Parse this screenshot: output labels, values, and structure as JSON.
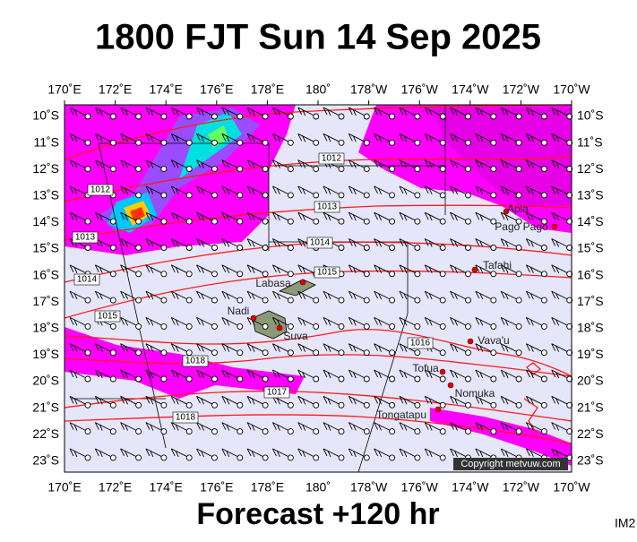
{
  "header": {
    "title": "1800 FJT Sun 14 Sep 2025"
  },
  "footer": {
    "subtitle": "Forecast +120 hr",
    "code": "IM2"
  },
  "map": {
    "lon_labels": [
      "170˚E",
      "172˚E",
      "174˚E",
      "176˚E",
      "178˚E",
      "180˚",
      "178˚W",
      "176˚W",
      "174˚W",
      "172˚W",
      "170˚W"
    ],
    "lat_labels": [
      "10˚S",
      "11˚S",
      "12˚S",
      "13˚S",
      "14˚S",
      "15˚S",
      "16˚S",
      "17˚S",
      "18˚S",
      "19˚S",
      "20˚S",
      "21˚S",
      "22˚S",
      "23˚S"
    ],
    "isobar_labels": [
      "1012",
      "1012",
      "1013",
      "1013",
      "1014",
      "1014",
      "1015",
      "1015",
      "1016",
      "1018",
      "1017",
      "1018"
    ],
    "places": [
      "Apia",
      "Pago Pago",
      "Tafahi",
      "Labasa",
      "Nadi",
      "Suva",
      "Vava'u",
      "Tofua",
      "Nomuka",
      "Tongatapu"
    ],
    "copyright": "Copyright metvuw.com"
  }
}
